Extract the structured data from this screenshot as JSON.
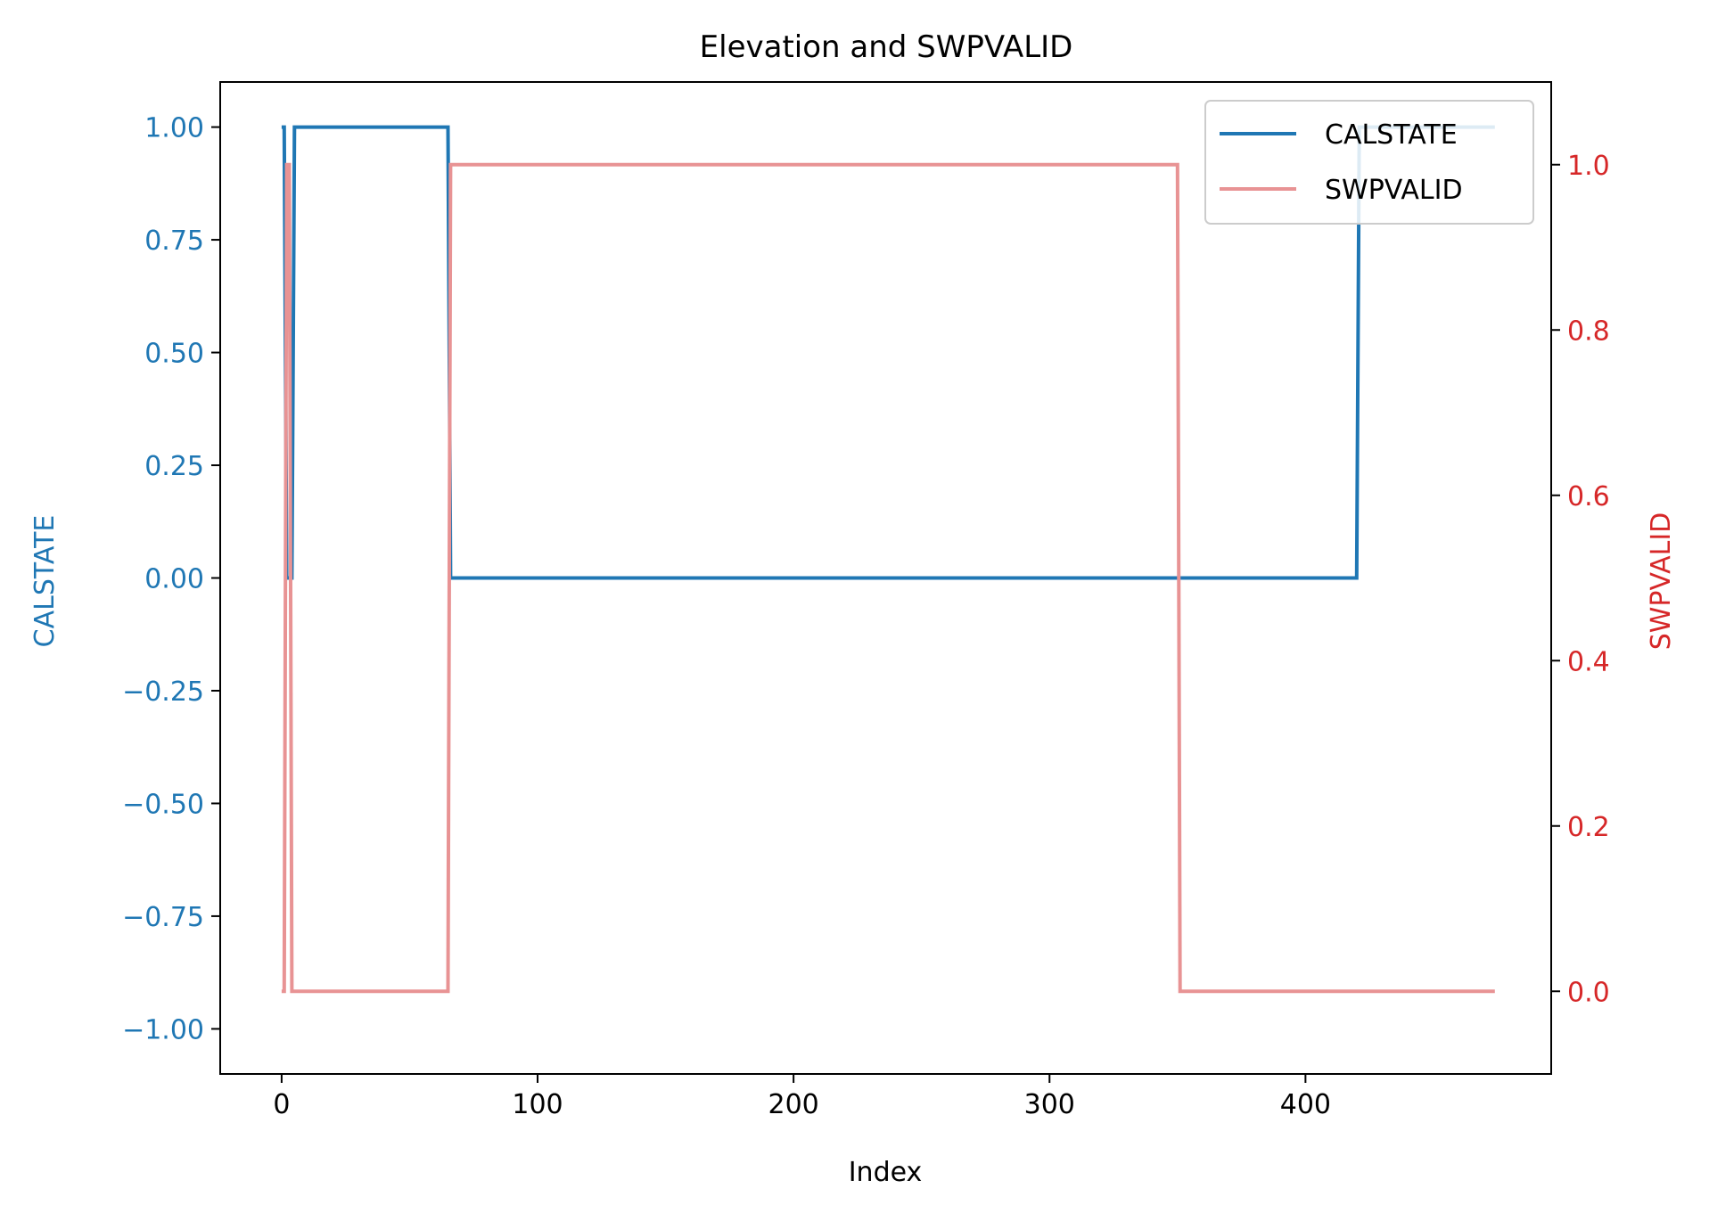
{
  "chart_data": {
    "type": "line",
    "title": "Elevation and SWPVALID",
    "xlabel": "Index",
    "xlim": [
      -24,
      496
    ],
    "grid": false,
    "legend": {
      "placement": "top-right",
      "entries": [
        "CALSTATE",
        "SWPVALID"
      ]
    },
    "x_ticks": [
      {
        "value": 0,
        "label": "0"
      },
      {
        "value": 100,
        "label": "100"
      },
      {
        "value": 200,
        "label": "200"
      },
      {
        "value": 300,
        "label": "300"
      },
      {
        "value": 400,
        "label": "400"
      }
    ],
    "y_left": {
      "label": "CALSTATE",
      "color": "#1f77b4",
      "ylim": [
        -1.1,
        1.1
      ],
      "ticks": [
        {
          "value": 1.0,
          "label": "1.00"
        },
        {
          "value": 0.75,
          "label": "0.75"
        },
        {
          "value": 0.5,
          "label": "0.50"
        },
        {
          "value": 0.25,
          "label": "0.25"
        },
        {
          "value": 0.0,
          "label": "0.00"
        },
        {
          "value": -0.25,
          "label": "−0.25"
        },
        {
          "value": -0.5,
          "label": "−0.50"
        },
        {
          "value": -0.75,
          "label": "−0.75"
        },
        {
          "value": -1.0,
          "label": "−1.00"
        }
      ]
    },
    "y_right": {
      "label": "SWPVALID",
      "color": "#d62728",
      "ylim": [
        -0.1,
        1.1
      ],
      "ticks": [
        {
          "value": 1.0,
          "label": "1.0"
        },
        {
          "value": 0.8,
          "label": "0.8"
        },
        {
          "value": 0.6,
          "label": "0.6"
        },
        {
          "value": 0.4,
          "label": "0.4"
        },
        {
          "value": 0.2,
          "label": "0.2"
        },
        {
          "value": 0.0,
          "label": "0.0"
        }
      ]
    },
    "series": [
      {
        "name": "CALSTATE",
        "axis": "left",
        "color": "#1f77b4",
        "x": [
          0,
          1,
          2,
          4,
          5,
          65,
          66,
          420,
          421,
          474
        ],
        "y": [
          1,
          1,
          0,
          0,
          1,
          1,
          0,
          0,
          1,
          1
        ]
      },
      {
        "name": "SWPVALID",
        "axis": "right",
        "color": "#e89394",
        "x": [
          0,
          1,
          2,
          3,
          4,
          65,
          66,
          350,
          351,
          474
        ],
        "y": [
          0,
          0,
          1,
          1,
          0,
          0,
          1,
          1,
          0,
          0
        ]
      }
    ]
  }
}
